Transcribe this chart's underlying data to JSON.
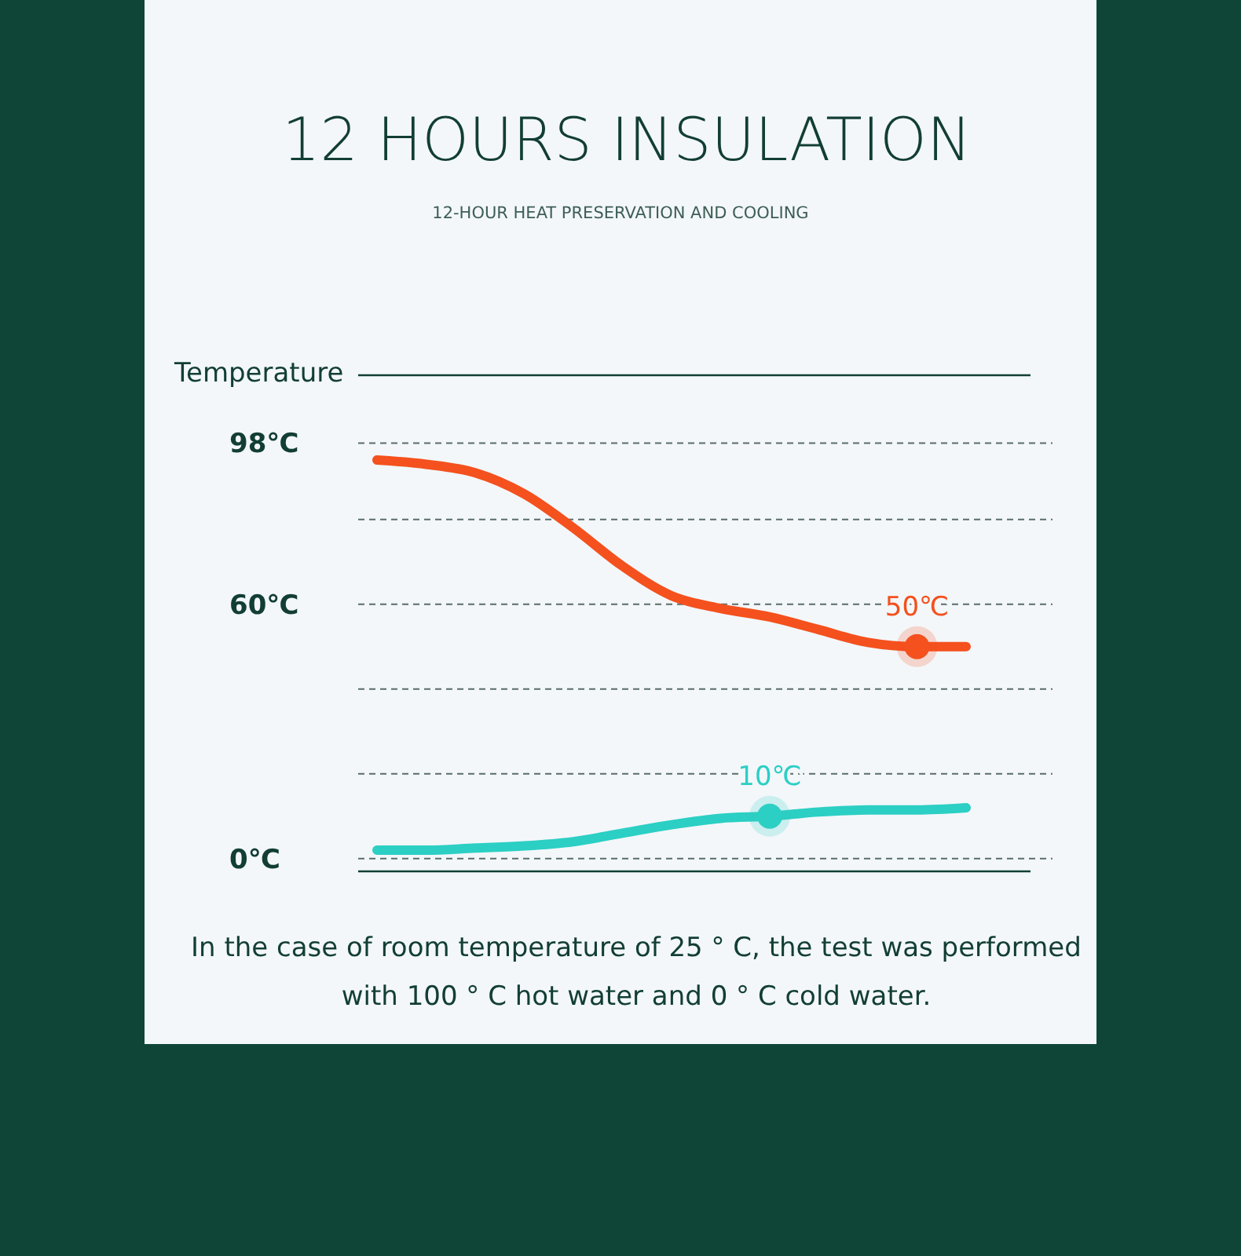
{
  "chart_data": {
    "type": "line",
    "title": "12 HOURS INSULATION",
    "subtitle": "12-HOUR HEAT PRESERVATION AND COOLING",
    "ylabel": "Temperature",
    "annotations": [
      "In the case of room temperature of 25 ° C, the test was performed with 100 ° C hot water and 0 ° C cold water."
    ],
    "categories": [
      null,
      null,
      null,
      null,
      null,
      null,
      null,
      null,
      null,
      null,
      null,
      null,
      null
    ],
    "series": [
      {
        "color": "#f4511e",
        "values": [
          94,
          93,
          91,
          86,
          78,
          69,
          62,
          59,
          57,
          54,
          51,
          50,
          50
        ],
        "value_labels": [
          null,
          null,
          null,
          null,
          null,
          null,
          null,
          null,
          null,
          null,
          null,
          "50℃",
          null
        ]
      },
      {
        "color": "#2ccfc4",
        "values": [
          2,
          2,
          2.5,
          3,
          4,
          6,
          8,
          9.5,
          10,
          11,
          11.5,
          11.5,
          12
        ],
        "value_labels": [
          null,
          null,
          null,
          null,
          null,
          null,
          null,
          null,
          "10℃",
          null,
          null,
          null,
          null
        ]
      }
    ],
    "ylim": [
      -3,
      114
    ],
    "yticks": [
      {
        "value": 0,
        "label": "0℃"
      },
      {
        "value": 20,
        "label": null
      },
      {
        "value": 40,
        "label": null
      },
      {
        "value": 60,
        "label": "60℃"
      },
      {
        "value": 80,
        "label": null
      },
      {
        "value": 98,
        "label": "98℃"
      }
    ],
    "grid": "y",
    "line_style": "solid"
  }
}
